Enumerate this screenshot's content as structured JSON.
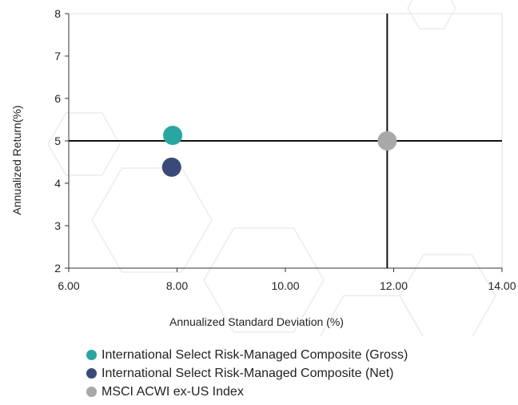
{
  "chart_data": {
    "type": "scatter",
    "xlabel": "Annualized Standard Deviation (%)",
    "ylabel": "Annualized Return(%)",
    "xlim": [
      6,
      14
    ],
    "ylim": [
      2,
      8
    ],
    "x_ticks": [
      "6.00",
      "8.00",
      "10.00",
      "12.00",
      "14.00"
    ],
    "y_ticks": [
      "2",
      "3",
      "4",
      "5",
      "6",
      "7",
      "8"
    ],
    "reference_lines": {
      "x": 11.88,
      "y": 5.0
    },
    "grid": false,
    "legend_position": "bottom",
    "series": [
      {
        "name": "International Select Risk-Managed Composite (Gross)",
        "color": "#2aa6a1",
        "x": 7.92,
        "y": 5.13
      },
      {
        "name": "International Select Risk-Managed Composite (Net)",
        "color": "#3a4a78",
        "x": 7.9,
        "y": 4.38
      },
      {
        "name": "MSCI ACWI ex-US Index",
        "color": "#a8a8a8",
        "x": 11.88,
        "y": 5.0
      }
    ]
  }
}
